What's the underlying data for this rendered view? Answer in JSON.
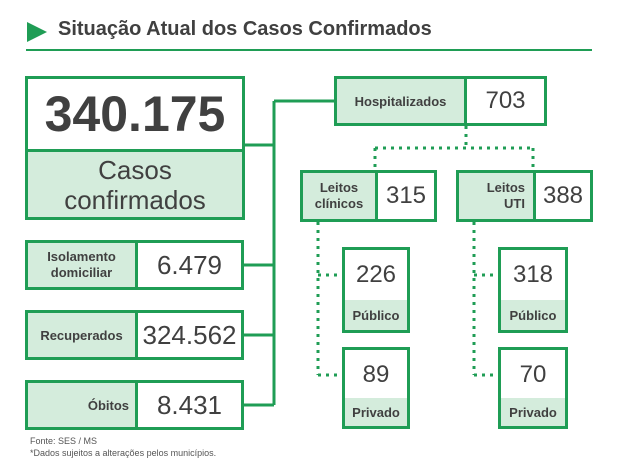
{
  "header": {
    "title": "Situação Atual dos Casos Confirmados"
  },
  "colors": {
    "accent": "#1f9d55",
    "fill": "#d4ecdc",
    "text": "#404040"
  },
  "total": {
    "value": "340.175",
    "label_line1": "Casos",
    "label_line2": "confirmados"
  },
  "left_rows": [
    {
      "label_line1": "Isolamento",
      "label_line2": "domiciliar",
      "value": "6.479"
    },
    {
      "label": "Recuperados",
      "value": "324.562"
    },
    {
      "label": "Óbitos",
      "value": "8.431"
    }
  ],
  "hospital": {
    "label": "Hospitalizados",
    "value": "703"
  },
  "clinicos": {
    "label_line1": "Leitos",
    "label_line2": "clínicos",
    "value": "315",
    "publico": {
      "value": "226",
      "label": "Público"
    },
    "privado": {
      "value": "89",
      "label": "Privado"
    }
  },
  "uti": {
    "label_line1": "Leitos",
    "label_line2": "UTI",
    "value": "388",
    "publico": {
      "value": "318",
      "label": "Público"
    },
    "privado": {
      "value": "70",
      "label": "Privado"
    }
  },
  "footer": {
    "source": "Fonte: SES / MS",
    "note": "*Dados sujeitos a alterações pelos municípios."
  }
}
